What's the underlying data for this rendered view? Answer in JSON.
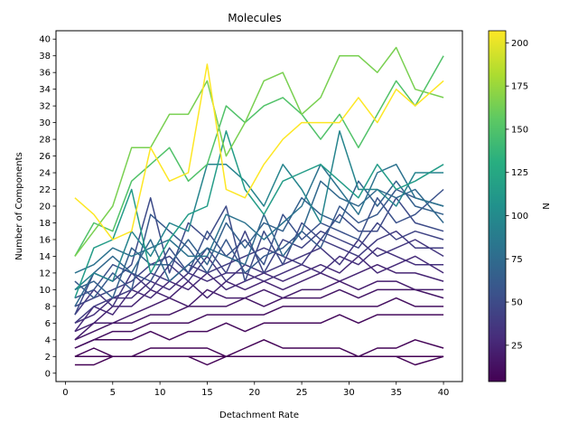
{
  "chart_data": {
    "type": "line",
    "title": "Molecules",
    "xlabel": "Detachment Rate",
    "ylabel": "Number of Components",
    "xlim": [
      -1,
      42
    ],
    "ylim": [
      -1,
      41
    ],
    "xticks": [
      0,
      5,
      10,
      15,
      20,
      25,
      30,
      35,
      40
    ],
    "yticks": [
      0,
      2,
      4,
      6,
      8,
      10,
      12,
      14,
      16,
      18,
      20,
      22,
      24,
      26,
      28,
      30,
      32,
      34,
      36,
      38,
      40
    ],
    "grid": false,
    "colormap": "viridis",
    "colorbar": {
      "label": "N",
      "range": [
        4,
        207
      ],
      "ticks": [
        25,
        50,
        75,
        100,
        125,
        150,
        175,
        200
      ]
    },
    "x": [
      1,
      3,
      5,
      7,
      9,
      11,
      13,
      15,
      17,
      19,
      21,
      23,
      25,
      27,
      29,
      31,
      33,
      35,
      37,
      40
    ],
    "series": [
      {
        "n": 207,
        "values": [
          21,
          19,
          16,
          17,
          27,
          23,
          24,
          37,
          22,
          21,
          25,
          28,
          30,
          30,
          30,
          33,
          30,
          34,
          32,
          35
        ]
      },
      {
        "n": 165,
        "values": [
          14,
          17,
          20,
          27,
          27,
          31,
          31,
          35,
          26,
          30,
          35,
          36,
          31,
          33,
          38,
          38,
          36,
          39,
          34,
          33
        ]
      },
      {
        "n": 150,
        "values": [
          14,
          18,
          17,
          23,
          25,
          27,
          23,
          25,
          32,
          30,
          32,
          33,
          31,
          28,
          31,
          27,
          31,
          35,
          32,
          38
        ]
      },
      {
        "n": 115,
        "values": [
          9,
          15,
          16,
          22,
          12,
          16,
          19,
          20,
          29,
          22,
          19,
          23,
          24,
          25,
          23,
          21,
          25,
          22,
          23,
          25
        ]
      },
      {
        "n": 95,
        "values": [
          10,
          12,
          11,
          17,
          14,
          18,
          17,
          25,
          25,
          23,
          20,
          25,
          22,
          18,
          29,
          22,
          22,
          20,
          24,
          24
        ]
      },
      {
        "n": 80,
        "values": [
          12,
          13,
          15,
          14,
          15,
          16,
          14,
          14,
          19,
          18,
          16,
          18,
          20,
          25,
          22,
          19,
          24,
          25,
          21,
          20
        ]
      },
      {
        "n": 72,
        "values": [
          8,
          12,
          14,
          12,
          16,
          11,
          13,
          15,
          14,
          13,
          19,
          14,
          17,
          23,
          21,
          20,
          22,
          21,
          22,
          18
        ]
      },
      {
        "n": 66,
        "values": [
          10,
          11,
          9,
          15,
          13,
          13,
          16,
          13,
          18,
          15,
          18,
          17,
          21,
          19,
          18,
          23,
          20,
          23,
          20,
          19
        ]
      },
      {
        "n": 60,
        "values": [
          11,
          9,
          12,
          10,
          19,
          17,
          15,
          12,
          16,
          12,
          14,
          15,
          17,
          15,
          20,
          18,
          19,
          22,
          21,
          20
        ]
      },
      {
        "n": 55,
        "values": [
          9,
          10,
          13,
          12,
          11,
          15,
          12,
          17,
          14,
          16,
          13,
          19,
          16,
          18,
          17,
          16,
          21,
          18,
          19,
          22
        ]
      },
      {
        "n": 50,
        "values": [
          7,
          12,
          11,
          13,
          21,
          12,
          18,
          16,
          20,
          11,
          17,
          13,
          18,
          16,
          19,
          17,
          17,
          21,
          18,
          17
        ]
      },
      {
        "n": 45,
        "values": [
          8,
          9,
          10,
          11,
          13,
          14,
          12,
          15,
          12,
          17,
          12,
          16,
          15,
          17,
          16,
          15,
          18,
          16,
          17,
          16
        ]
      },
      {
        "n": 40,
        "values": [
          6,
          8,
          9,
          10,
          12,
          11,
          13,
          12,
          13,
          14,
          15,
          14,
          13,
          16,
          15,
          14,
          16,
          17,
          15,
          15
        ]
      },
      {
        "n": 36,
        "values": [
          7,
          10,
          8,
          12,
          10,
          13,
          11,
          14,
          11,
          13,
          12,
          13,
          14,
          15,
          13,
          16,
          14,
          15,
          16,
          14
        ]
      },
      {
        "n": 32,
        "values": [
          6,
          7,
          9,
          9,
          11,
          10,
          12,
          11,
          12,
          12,
          11,
          12,
          13,
          12,
          14,
          13,
          15,
          14,
          13,
          13
        ]
      },
      {
        "n": 28,
        "values": [
          5,
          8,
          7,
          10,
          9,
          11,
          10,
          12,
          10,
          11,
          12,
          11,
          12,
          13,
          12,
          14,
          12,
          13,
          14,
          12
        ]
      },
      {
        "n": 24,
        "values": [
          5,
          6,
          8,
          8,
          10,
          9,
          11,
          9,
          11,
          10,
          11,
          10,
          11,
          12,
          11,
          12,
          13,
          12,
          12,
          11
        ]
      },
      {
        "n": 20,
        "values": [
          4,
          6,
          6,
          7,
          8,
          9,
          8,
          10,
          9,
          9,
          10,
          9,
          10,
          10,
          11,
          10,
          11,
          11,
          10,
          10
        ]
      },
      {
        "n": 16,
        "values": [
          4,
          5,
          6,
          6,
          7,
          7,
          8,
          8,
          8,
          9,
          8,
          9,
          9,
          9,
          10,
          9,
          10,
          10,
          10,
          9
        ]
      },
      {
        "n": 12,
        "values": [
          3,
          4,
          5,
          5,
          6,
          6,
          6,
          7,
          7,
          7,
          7,
          8,
          8,
          8,
          8,
          8,
          8,
          9,
          8,
          8
        ]
      },
      {
        "n": 9,
        "values": [
          3,
          4,
          4,
          4,
          5,
          4,
          5,
          5,
          6,
          5,
          6,
          6,
          6,
          6,
          7,
          6,
          7,
          7,
          7,
          7
        ]
      },
      {
        "n": 6,
        "values": [
          2,
          3,
          2,
          2,
          3,
          3,
          3,
          3,
          2,
          3,
          4,
          3,
          3,
          3,
          3,
          2,
          3,
          3,
          4,
          3
        ]
      },
      {
        "n": 5,
        "values": [
          2,
          2,
          2,
          2,
          2,
          2,
          2,
          1,
          2,
          2,
          2,
          2,
          2,
          2,
          2,
          2,
          2,
          2,
          1,
          2
        ]
      },
      {
        "n": 4,
        "values": [
          1,
          1,
          2,
          2,
          2,
          2,
          2,
          2,
          2,
          2,
          2,
          2,
          2,
          2,
          2,
          2,
          2,
          2,
          2,
          2
        ]
      }
    ]
  }
}
